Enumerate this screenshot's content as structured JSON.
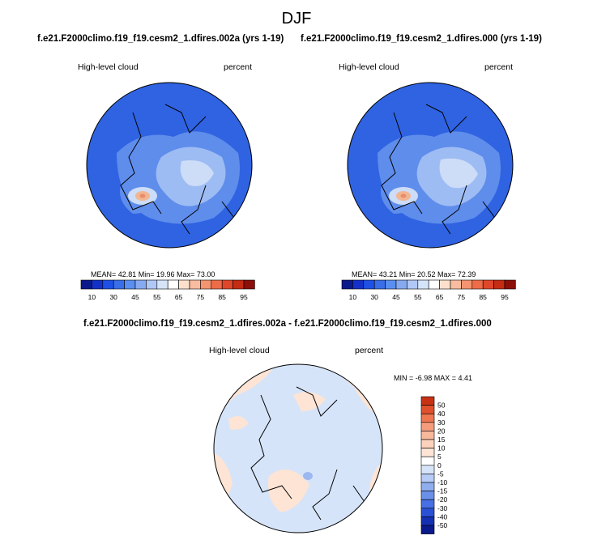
{
  "page": {
    "title": "DJF",
    "left_panel_title": "f.e21.F2000climo.f19_f19.cesm2_1.dfires.002a (yrs 1-19)",
    "right_panel_title": "f.e21.F2000climo.f19_f19.cesm2_1.dfires.000 (yrs 1-19)",
    "diff_title": "f.e21.F2000climo.f19_f19.cesm2_1.dfires.002a - f.e21.F2000climo.f19_f19.cesm2_1.dfires.000"
  },
  "panels": [
    {
      "variable": "High-level cloud",
      "units": "percent",
      "stats": "MEAN=  42.81  Min=  19.96  Max=  73.00"
    },
    {
      "variable": "High-level cloud",
      "units": "percent",
      "stats": "MEAN=  43.21  Min=  20.52  Max=  72.39"
    },
    {
      "variable": "High-level cloud",
      "units": "percent",
      "stats": "MIN =  -6.98 MAX =   4.41"
    }
  ],
  "colorbars": {
    "abs": {
      "tick_labels": [
        "10",
        "30",
        "45",
        "55",
        "65",
        "75",
        "85",
        "95"
      ],
      "colors": [
        "#0a1a8c",
        "#1530c8",
        "#1e50e6",
        "#3a6ee8",
        "#5a8ef0",
        "#86aaf0",
        "#b0c8f6",
        "#d6e4fa",
        "#ffffff",
        "#fce0cc",
        "#f8bca0",
        "#f49470",
        "#ee6c48",
        "#e0462a",
        "#c42c14",
        "#8c0f0a"
      ]
    },
    "diff": {
      "levels": [
        "50",
        "40",
        "30",
        "20",
        "15",
        "10",
        "5",
        "0",
        "-5",
        "-10",
        "-15",
        "-20",
        "-30",
        "-40",
        "-50"
      ],
      "colors": [
        "#c83214",
        "#e0502c",
        "#ee7650",
        "#f49c7c",
        "#f8b89c",
        "#fcd2bc",
        "#fde4d4",
        "#ffffff",
        "#d6e4fa",
        "#b6ccf6",
        "#8eaef0",
        "#6a90ea",
        "#4670e4",
        "#2a50d6",
        "#1630b4",
        "#0a1a8c"
      ]
    }
  },
  "maps": {
    "abs_base": "#2f63e2",
    "abs_mid": "#5f8deb",
    "abs_light": "#9dbcf3",
    "abs_pale": "#cddcf7",
    "abs_warm": "#f2b592",
    "abs_warm2": "#e88c68",
    "diff_base": "#d6e4fa",
    "diff_warm": "#fde4d4",
    "diff_blue": "#9db8f0"
  }
}
